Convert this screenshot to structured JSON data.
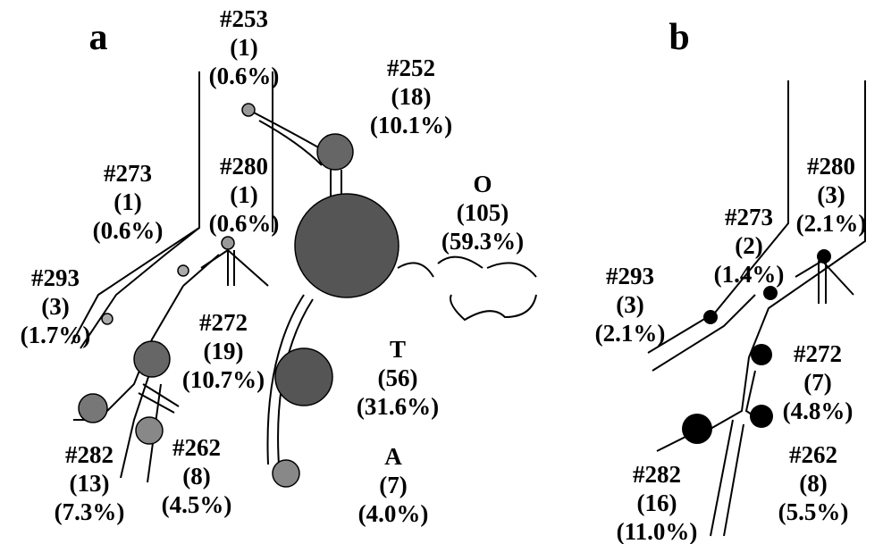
{
  "panels": [
    {
      "label": "a",
      "nodes": [
        {
          "id": "#253",
          "count": "(1)",
          "percent": "(0.6%)"
        },
        {
          "id": "#252",
          "count": "(18)",
          "percent": "(10.1%)"
        },
        {
          "id": "#273",
          "count": "(1)",
          "percent": "(0.6%)"
        },
        {
          "id": "#280",
          "count": "(1)",
          "percent": "(0.6%)"
        },
        {
          "id": "O",
          "count": "(105)",
          "percent": "(59.3%)"
        },
        {
          "id": "#293",
          "count": "(3)",
          "percent": "(1.7%)"
        },
        {
          "id": "#272",
          "count": "(19)",
          "percent": "(10.7%)"
        },
        {
          "id": "T",
          "count": "(56)",
          "percent": "(31.6%)"
        },
        {
          "id": "#282",
          "count": "(13)",
          "percent": "(7.3%)"
        },
        {
          "id": "#262",
          "count": "(8)",
          "percent": "(4.5%)"
        },
        {
          "id": "A",
          "count": "(7)",
          "percent": "(4.0%)"
        }
      ]
    },
    {
      "label": "b",
      "nodes": [
        {
          "id": "#280",
          "count": "(3)",
          "percent": "(2.1%)"
        },
        {
          "id": "#273",
          "count": "(2)",
          "percent": "(1.4%)"
        },
        {
          "id": "#293",
          "count": "(3)",
          "percent": "(2.1%)"
        },
        {
          "id": "#272",
          "count": "(7)",
          "percent": "(4.8%)"
        },
        {
          "id": "#262",
          "count": "(8)",
          "percent": "(5.5%)"
        },
        {
          "id": "#282",
          "count": "(16)",
          "percent": "(11.0%)"
        }
      ]
    }
  ]
}
